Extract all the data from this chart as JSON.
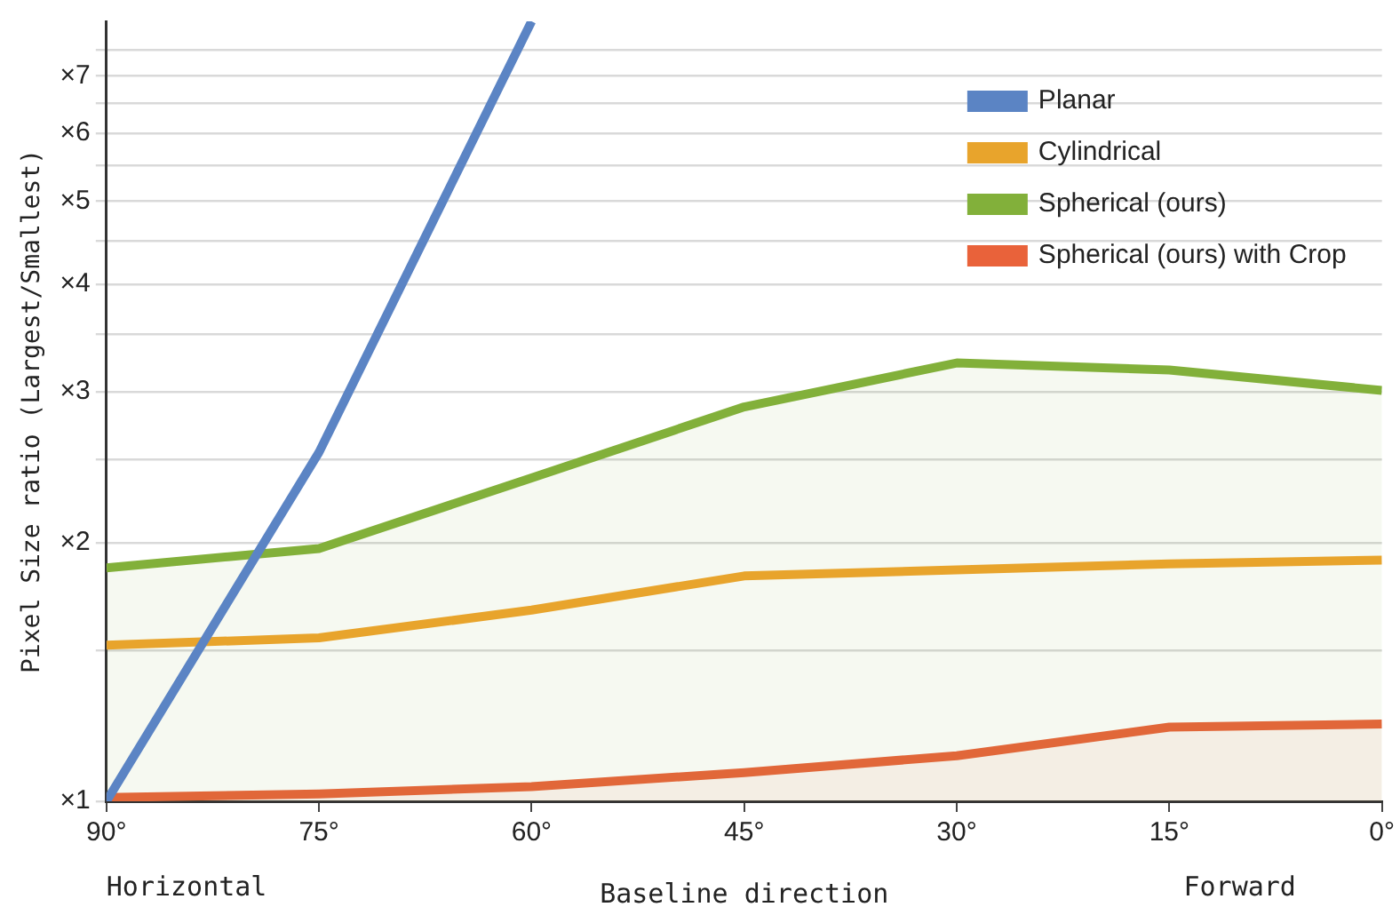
{
  "chart_data": {
    "type": "line",
    "ylabel": "Pixel Size ratio (Largest/Smallest)",
    "xlabel": "Baseline direction",
    "annotations": [
      "Horizontal",
      "Forward"
    ],
    "x": [
      90,
      75,
      60,
      45,
      30,
      15,
      0
    ],
    "xlim": [
      90,
      0
    ],
    "xticks": [
      {
        "value": 90,
        "label": "90°"
      },
      {
        "value": 75,
        "label": "75°"
      },
      {
        "value": 60,
        "label": "60°"
      },
      {
        "value": 45,
        "label": "45°"
      },
      {
        "value": 30,
        "label": "30°"
      },
      {
        "value": 15,
        "label": "15°"
      },
      {
        "value": 0,
        "label": "0°"
      }
    ],
    "log": "y",
    "ylim": [
      1,
      8.1
    ],
    "yticks": [
      {
        "value": 1,
        "label": "×1"
      },
      {
        "value": 1.5,
        "label": null
      },
      {
        "value": 2,
        "label": "×2"
      },
      {
        "value": 2.5,
        "label": null
      },
      {
        "value": 3,
        "label": "×3"
      },
      {
        "value": 3.5,
        "label": null
      },
      {
        "value": 4,
        "label": "×4"
      },
      {
        "value": 4.5,
        "label": null
      },
      {
        "value": 5,
        "label": "×5"
      },
      {
        "value": 5.5,
        "label": null
      },
      {
        "value": 6,
        "label": "×6"
      },
      {
        "value": 6.5,
        "label": null
      },
      {
        "value": 7,
        "label": "×7"
      },
      {
        "value": 7.5,
        "label": null
      }
    ],
    "grid": "y",
    "legend": "top right",
    "marker": "none",
    "series": [
      {
        "name": "Planar",
        "color": "#5b84c4",
        "type": "line",
        "values": [
          1.0,
          2.55,
          8.1,
          null,
          null,
          null,
          null
        ]
      },
      {
        "name": "Cylindrical",
        "color": "#e8a42c",
        "type": "line",
        "values": [
          1.52,
          1.55,
          1.67,
          1.83,
          1.86,
          1.89,
          1.91
        ]
      },
      {
        "name": "Spherical (ours)",
        "color": "#82b03a",
        "type": "area",
        "values": [
          1.87,
          1.97,
          2.38,
          2.88,
          3.24,
          3.18,
          3.01
        ]
      },
      {
        "name": "Spherical (ours) with Crop",
        "color": "#e9623a",
        "type": "area",
        "values": [
          1.01,
          1.02,
          1.04,
          1.08,
          1.13,
          1.22,
          1.23
        ]
      }
    ]
  }
}
